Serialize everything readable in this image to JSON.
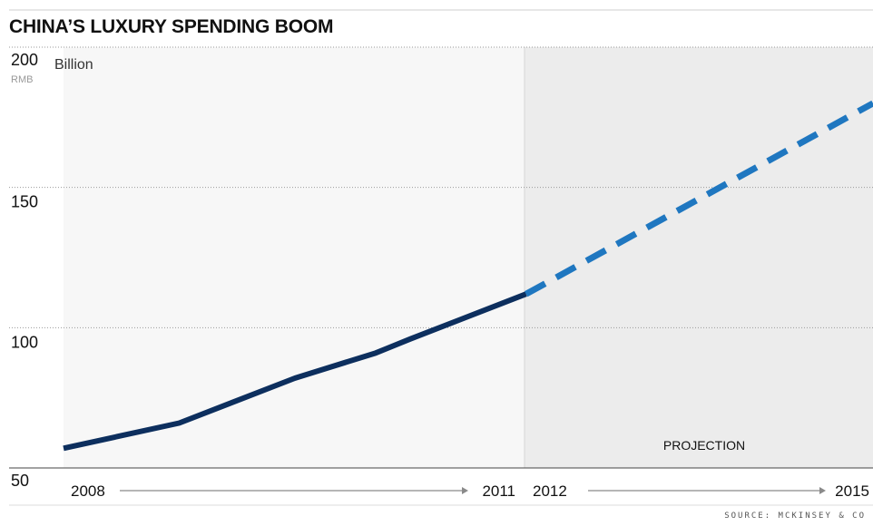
{
  "chart_data": {
    "type": "line",
    "title": "CHINA’S LUXURY SPENDING BOOM",
    "ylabel_unit": "Billion",
    "ylabel_sub": "RMB",
    "ylim": [
      50,
      200
    ],
    "yticks": [
      "50",
      "100",
      "150",
      "200"
    ],
    "grid": true,
    "x_start": 2008,
    "x_end": 2015,
    "x_labels": [
      "2008",
      "2011",
      "2012",
      "2015"
    ],
    "series": [
      {
        "name": "",
        "style": "solid",
        "color": "#0d2f5e",
        "points": [
          [
            2008,
            57
          ],
          [
            2009,
            66
          ],
          [
            2010,
            82
          ],
          [
            2010.7,
            91
          ],
          [
            2011,
            96
          ],
          [
            2012,
            112
          ]
        ]
      },
      {
        "name": "",
        "style": "dashed",
        "color": "#1f77c0",
        "points": [
          [
            2012,
            112
          ],
          [
            2015,
            180
          ]
        ]
      }
    ],
    "projection_label": "PROJECTION",
    "projection_start": 2012,
    "source": "SOURCE: MCKINSEY & CO"
  }
}
